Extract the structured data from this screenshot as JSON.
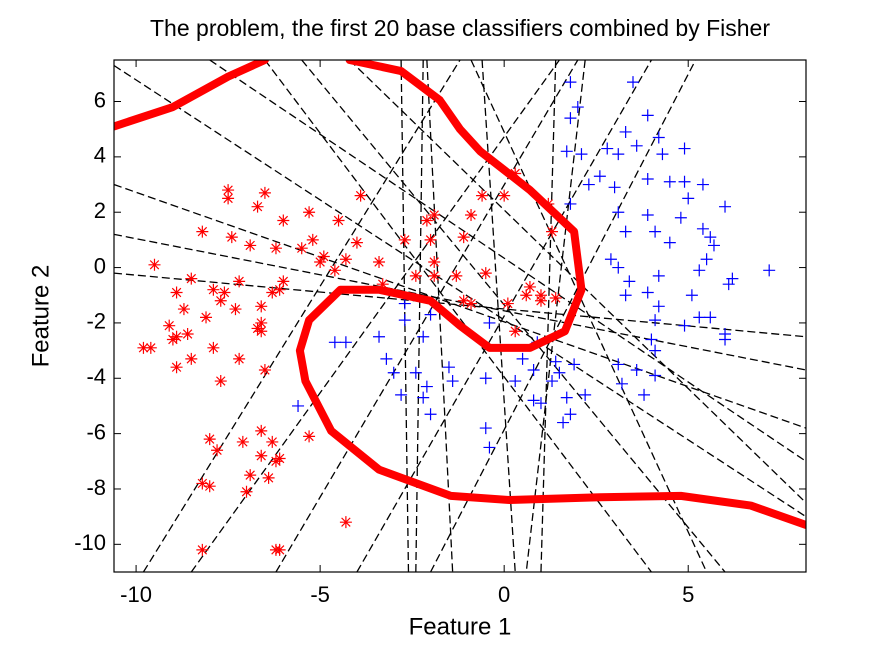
{
  "chart_data": {
    "type": "scatter",
    "title": "The problem, the first 20 base classifiers combined by Fisher",
    "x_label": "Feature 1",
    "y_label": "Feature 2",
    "xlim": [
      -10.6,
      8.2
    ],
    "ylim": [
      -11,
      7.5
    ],
    "xticks": [
      -10,
      -5,
      0,
      5
    ],
    "yticks": [
      6,
      4,
      2,
      0,
      -2,
      -4,
      -6,
      -8,
      -10
    ],
    "series": [
      {
        "type": "line",
        "color": "#000000",
        "dash": true,
        "width": 1.3,
        "x": [
          -10.6,
          8.2
        ],
        "values": [
          7.3,
          -9.0
        ]
      },
      {
        "type": "line",
        "color": "#000000",
        "dash": true,
        "width": 1.3,
        "x": [
          -10.6,
          8.2
        ],
        "values": [
          3.0,
          -5.8
        ]
      },
      {
        "type": "line",
        "color": "#000000",
        "dash": true,
        "width": 1.3,
        "x": [
          -10.6,
          8.2
        ],
        "values": [
          1.2,
          -3.7
        ]
      },
      {
        "type": "line",
        "color": "#000000",
        "dash": true,
        "width": 1.3,
        "x": [
          -10.6,
          8.2
        ],
        "values": [
          -0.2,
          -2.5
        ]
      },
      {
        "type": "line",
        "color": "#000000",
        "dash": true,
        "width": 1.3,
        "x": [
          -8.0,
          8.2
        ],
        "values": [
          7.5,
          -7.0
        ]
      },
      {
        "type": "line",
        "color": "#000000",
        "dash": true,
        "width": 1.3,
        "x": [
          -6.5,
          4.0
        ],
        "values": [
          7.5,
          -11
        ]
      },
      {
        "type": "line",
        "color": "#000000",
        "dash": true,
        "width": 1.3,
        "x": [
          -5.5,
          6.0
        ],
        "values": [
          7.5,
          -11
        ]
      },
      {
        "type": "line",
        "color": "#000000",
        "dash": true,
        "width": 1.3,
        "x": [
          -2.8,
          -2.6
        ],
        "values": [
          7.5,
          -11
        ]
      },
      {
        "type": "line",
        "color": "#000000",
        "dash": true,
        "width": 1.3,
        "x": [
          -2.2,
          -2.4
        ],
        "values": [
          7.5,
          -11
        ]
      },
      {
        "type": "line",
        "color": "#000000",
        "dash": true,
        "width": 1.3,
        "x": [
          -2.1,
          -1.4
        ],
        "values": [
          7.5,
          -11
        ]
      },
      {
        "type": "line",
        "color": "#000000",
        "dash": true,
        "width": 1.3,
        "x": [
          -0.6,
          0.3
        ],
        "values": [
          7.5,
          -11
        ]
      },
      {
        "type": "line",
        "color": "#000000",
        "dash": true,
        "width": 1.3,
        "x": [
          2.2,
          0.6
        ],
        "values": [
          7.5,
          -11
        ]
      },
      {
        "type": "line",
        "color": "#000000",
        "dash": true,
        "width": 1.3,
        "x": [
          1.4,
          1.0
        ],
        "values": [
          7.5,
          -11
        ]
      },
      {
        "type": "line",
        "color": "#000000",
        "dash": true,
        "width": 1.3,
        "x": [
          -9.8,
          -1.2
        ],
        "values": [
          -11,
          7.5
        ]
      },
      {
        "type": "line",
        "color": "#000000",
        "dash": true,
        "width": 1.3,
        "x": [
          -8.5,
          1.5
        ],
        "values": [
          -11,
          7.5
        ]
      },
      {
        "type": "line",
        "color": "#000000",
        "dash": true,
        "width": 1.3,
        "x": [
          -6.2,
          2.0
        ],
        "values": [
          -11,
          7.5
        ]
      },
      {
        "type": "line",
        "color": "#000000",
        "dash": true,
        "width": 1.3,
        "x": [
          -4.0,
          4.0
        ],
        "values": [
          -11,
          7.5
        ]
      },
      {
        "type": "line",
        "color": "#000000",
        "dash": true,
        "width": 1.3,
        "x": [
          -2.0,
          5.2
        ],
        "values": [
          -11,
          7.5
        ]
      },
      {
        "type": "line",
        "color": "#000000",
        "dash": true,
        "width": 1.3,
        "x": [
          -0.9,
          5.5
        ],
        "values": [
          7.5,
          -11
        ]
      },
      {
        "type": "line",
        "color": "#000000",
        "dash": true,
        "width": 1.3,
        "x": [
          -4.2,
          8.2
        ],
        "values": [
          7.5,
          -8.5
        ]
      },
      {
        "type": "scatter",
        "color": "#ff0000",
        "marker": "*",
        "x": [
          -7.5,
          -7.5,
          -6.7,
          -6.5,
          -6.0,
          -5.3,
          -4.5,
          -3.9,
          -8.2,
          -7.4,
          -6.9,
          -6.2,
          -5.2,
          -5.5,
          -4.9,
          -4.3,
          -4.0,
          -4.6,
          -5.0,
          -3.4,
          -2.7,
          -3.3,
          -9.5,
          -8.9,
          -8.5,
          -7.9,
          -7.2,
          -7.6,
          -6.6,
          -6.3,
          -6.0,
          -6.1,
          -8.7,
          -8.1,
          -7.7,
          -7.3,
          -9.1,
          -8.6,
          -8.9,
          -6.7,
          -6.6,
          -6.6,
          -9.8,
          -9.6,
          -9.0,
          -7.9,
          -8.5,
          -7.2,
          -8.9,
          -7.7,
          -6.5,
          -8.0,
          -7.8,
          -7.1,
          -6.6,
          -6.3,
          -6.6,
          -6.2,
          -6.1,
          -6.9,
          -6.4,
          -7.0,
          -8.2,
          -8.0,
          -8.2,
          -6.2,
          -6.1,
          -5.3,
          -4.3,
          -2.4,
          -2.1,
          -1.9,
          -2.0,
          -1.9,
          -1.9,
          -1.3,
          -1.1,
          -0.9,
          -0.5,
          -0.9,
          0.0,
          0.3,
          1.2,
          1.3,
          0.1,
          0.3,
          0.7,
          0.6,
          1.0,
          1.0,
          1.4,
          -1.1,
          -0.6
        ],
        "values": [
          2.8,
          2.5,
          2.2,
          2.7,
          1.7,
          2.0,
          1.7,
          2.6,
          1.3,
          1.1,
          0.8,
          0.7,
          1.0,
          0.7,
          0.4,
          0.3,
          0.9,
          -0.1,
          0.2,
          0.2,
          1.0,
          -0.6,
          0.1,
          -0.9,
          -0.4,
          -0.8,
          -0.5,
          -0.9,
          -1.4,
          -0.9,
          -0.5,
          -0.8,
          -1.5,
          -1.8,
          -1.2,
          -1.5,
          -2.1,
          -2.4,
          -2.5,
          -2.2,
          -2.0,
          -2.3,
          -2.9,
          -2.9,
          -2.6,
          -2.9,
          -3.3,
          -3.3,
          -3.6,
          -4.1,
          -3.7,
          -6.2,
          -6.6,
          -6.3,
          -5.9,
          -6.3,
          -6.8,
          -7.0,
          -6.9,
          -7.5,
          -7.6,
          -8.1,
          -7.8,
          -7.9,
          -10.2,
          -10.2,
          -10.2,
          -6.1,
          -9.2,
          -0.3,
          1.7,
          1.9,
          1.0,
          0.2,
          -0.3,
          -0.3,
          -1.2,
          -1.3,
          -0.2,
          1.9,
          2.6,
          3.4,
          2.3,
          1.3,
          -1.3,
          -2.3,
          -0.7,
          -1.0,
          -1.0,
          -1.2,
          -1.1,
          1.1,
          2.6
        ]
      },
      {
        "type": "scatter",
        "color": "#0000ff",
        "marker": "+",
        "x": [
          1.8,
          3.5,
          2.0,
          1.8,
          3.9,
          3.3,
          4.2,
          1.7,
          2.1,
          2.8,
          3.1,
          3.6,
          4.3,
          4.9,
          2.3,
          2.6,
          3.0,
          3.9,
          4.5,
          4.9,
          5.4,
          5.0,
          1.8,
          3.1,
          3.9,
          4.8,
          6.0,
          3.3,
          4.1,
          4.5,
          5.4,
          5.6,
          5.7,
          5.5,
          2.9,
          3.1,
          4.2,
          5.3,
          6.1,
          3.9,
          3.4,
          5.1,
          6.2,
          7.2,
          3.3,
          4.2,
          5.3,
          5.6,
          4.1,
          4.9,
          6.0,
          6.0,
          4.0,
          4.1,
          3.1,
          3.6,
          4.1,
          3.2,
          3.8,
          1.5,
          1.3,
          1.9,
          2.2,
          1.7,
          0.8,
          1.0,
          1.8,
          1.6,
          0.3,
          -0.5,
          -0.4,
          -0.5,
          0.8,
          1.4,
          0.9,
          -1.5,
          -1.4,
          -2.1,
          -2.0,
          -2.2,
          -2.4,
          -2.8,
          -3.0,
          -3.2,
          -3.4,
          -2.7,
          -2.2,
          -2.0,
          -4.6,
          -4.3,
          -5.6,
          -2.7,
          -0.4,
          0.5
        ],
        "values": [
          6.7,
          6.7,
          5.8,
          5.4,
          5.5,
          4.9,
          4.7,
          4.2,
          4.1,
          4.3,
          4.1,
          4.4,
          4.1,
          4.3,
          3.0,
          3.3,
          2.9,
          3.2,
          3.1,
          3.1,
          3.0,
          2.5,
          2.3,
          2.0,
          1.9,
          1.8,
          2.2,
          1.3,
          1.3,
          0.9,
          1.4,
          1.1,
          0.8,
          0.3,
          0.3,
          0.0,
          -0.3,
          -0.1,
          -0.6,
          -0.9,
          -0.5,
          -1.0,
          -0.4,
          -0.1,
          -1.0,
          -1.4,
          -1.8,
          -1.8,
          -1.9,
          -2.1,
          -2.6,
          -2.4,
          -2.6,
          -3.0,
          -3.5,
          -3.7,
          -3.9,
          -4.2,
          -4.6,
          -3.8,
          -4.1,
          -3.5,
          -4.6,
          -4.7,
          -4.8,
          -4.9,
          -5.3,
          -5.6,
          -4.1,
          -5.8,
          -6.5,
          -4.0,
          -3.7,
          -3.4,
          -2.7,
          -3.6,
          -4.1,
          -4.3,
          -5.3,
          -4.7,
          -3.8,
          -4.6,
          -3.8,
          -3.3,
          -2.5,
          -1.9,
          -2.5,
          -1.7,
          -2.7,
          -2.7,
          -5.0,
          -1.3,
          -2.0,
          -3.3
        ]
      },
      {
        "type": "line",
        "color": "#ff0000",
        "dash": false,
        "width": 8,
        "x": [
          -10.6,
          -9.0,
          -7.5,
          -6.5
        ],
        "values": [
          5.1,
          5.8,
          6.9,
          7.5
        ]
      },
      {
        "type": "line",
        "color": "#ff0000",
        "dash": false,
        "width": 8,
        "x": [
          -4.2,
          -2.8,
          -1.75,
          -1.2,
          -0.65,
          0.7,
          1.9,
          2.1,
          1.65,
          0.7,
          -0.4,
          -1.2,
          -2.0,
          -3.4,
          -4.45,
          -5.3,
          -5.55,
          -5.4,
          -4.7,
          -3.4,
          -1.45,
          0.15,
          2.6,
          4.8,
          6.7,
          8.2
        ],
        "values": [
          7.5,
          7.1,
          6.05,
          5.0,
          4.2,
          2.8,
          1.3,
          -0.8,
          -2.3,
          -2.9,
          -2.9,
          -2.1,
          -1.2,
          -0.8,
          -0.8,
          -1.9,
          -3.0,
          -4.1,
          -5.9,
          -7.3,
          -8.25,
          -8.4,
          -8.3,
          -8.25,
          -8.6,
          -9.3
        ]
      }
    ]
  }
}
